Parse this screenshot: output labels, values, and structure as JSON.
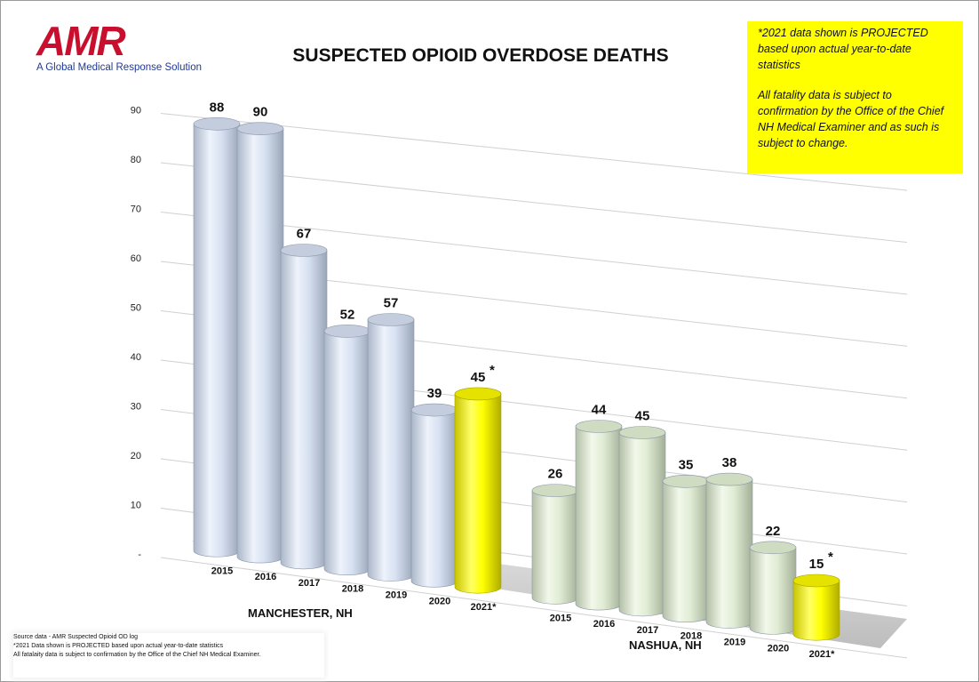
{
  "header": {
    "logo_text": "AMR",
    "logo_tagline": "A Global Medical Response Solution"
  },
  "note_box": {
    "line1": "*2021 data shown is PROJECTED based upon actual year-to-date statistics",
    "line2": "All fatality data is subject to confirmation by the Office of the Chief NH Medical Examiner and as such is subject to change.",
    "bg_color": "#ffff00"
  },
  "footer": {
    "lines": [
      "Source data - AMR Suspected Opioid OD log",
      "*2021 Data shown is PROJECTED based upon actual year-to-date statistics",
      "All fatalaity data is subject to confirmation by the Office of the Chief NH Medical Examiner."
    ]
  },
  "chart_data": {
    "type": "bar",
    "style": "3d-cylinder",
    "title": "SUSPECTED OPIOID OVERDOSE DEATHS",
    "ylim": [
      0,
      90
    ],
    "y_ticks": [
      "-",
      "10",
      "20",
      "30",
      "40",
      "50",
      "60",
      "70",
      "80",
      "90"
    ],
    "grid": true,
    "groups": [
      {
        "name": "MANCHESTER, NH",
        "categories": [
          "2015",
          "2016",
          "2017",
          "2018",
          "2019",
          "2020",
          "2021*"
        ],
        "values": [
          88,
          90,
          67,
          52,
          57,
          39,
          45
        ],
        "value_labels": [
          "88",
          "90",
          "67",
          "52",
          "57",
          "39",
          "45"
        ],
        "projected_mark": "*",
        "color": "#d7e1f2",
        "projected_color": "#ffff00"
      },
      {
        "name": "NASHUA, NH",
        "categories": [
          "2015",
          "2016",
          "2017",
          "2018",
          "2019",
          "2020",
          "2021*"
        ],
        "values": [
          26,
          44,
          45,
          35,
          38,
          22,
          15
        ],
        "value_labels": [
          "26",
          "44",
          "45",
          "35",
          "38",
          "22",
          "15"
        ],
        "projected_mark": "*",
        "color": "#e0ecd4",
        "projected_color": "#ffff00"
      }
    ]
  }
}
